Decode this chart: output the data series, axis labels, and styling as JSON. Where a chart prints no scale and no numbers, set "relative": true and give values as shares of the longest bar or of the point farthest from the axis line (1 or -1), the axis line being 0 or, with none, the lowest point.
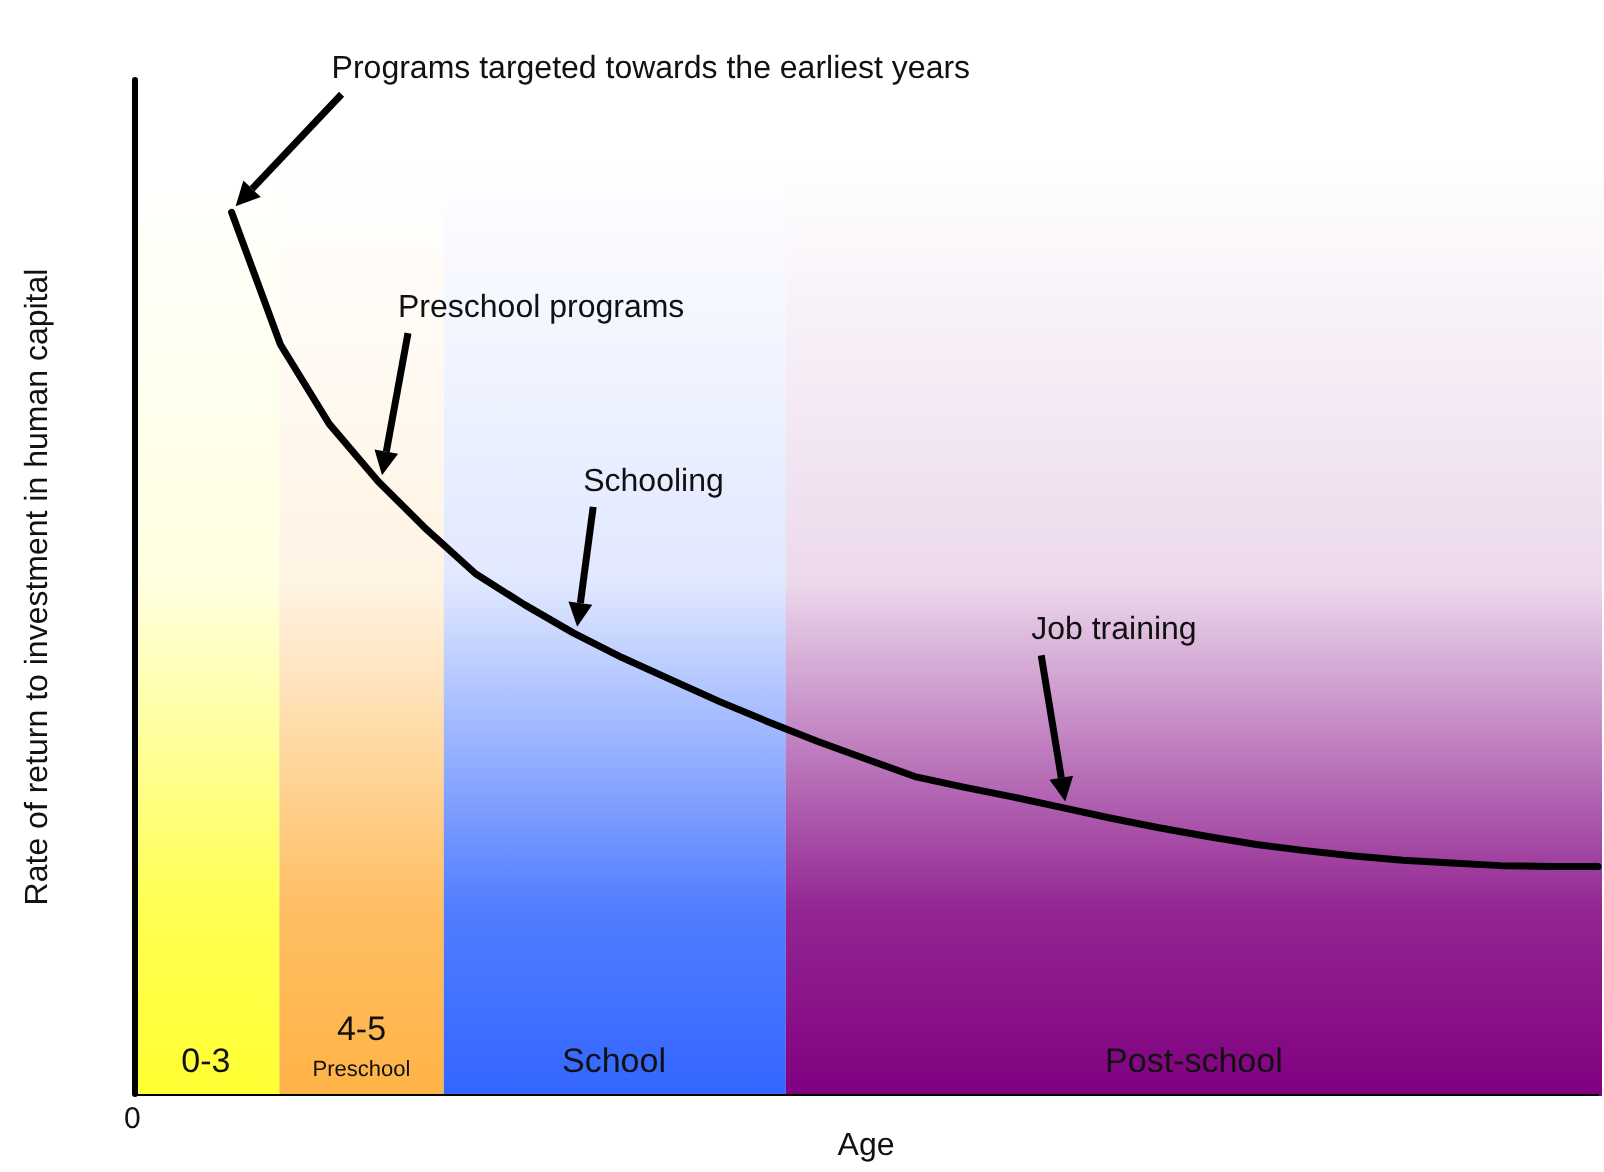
{
  "chart_data": {
    "type": "line",
    "relative": true,
    "xlabel": "Age",
    "ylabel": "Rate of return to investment in human capital",
    "marker": "none",
    "line_style": "solid",
    "categories": [
      null,
      null,
      null,
      null,
      null,
      null,
      null,
      null,
      null,
      null,
      null,
      null,
      null,
      null,
      null,
      null,
      null,
      null,
      null,
      null,
      null,
      null,
      null,
      null,
      null,
      null,
      null,
      null,
      null,
      null,
      null
    ],
    "series": [
      {
        "color": "#000000",
        "values": [
          null,
          null,
          1.0,
          0.85,
          0.76,
          0.695,
          0.64,
          0.59,
          0.555,
          0.523,
          0.495,
          0.47,
          0.445,
          0.422,
          0.4,
          0.38,
          0.36,
          0.348,
          0.337,
          0.325,
          0.313,
          0.302,
          0.292,
          0.283,
          0.276,
          0.27,
          0.265,
          0.262,
          0.259,
          0.258,
          0.258
        ]
      }
    ],
    "annotations": [
      "0",
      "Programs targeted towards the earliest years",
      "Preschool programs",
      "Schooling",
      "Job training",
      "0-3",
      "4-5",
      "Preschool",
      "School",
      "Post-school"
    ]
  }
}
